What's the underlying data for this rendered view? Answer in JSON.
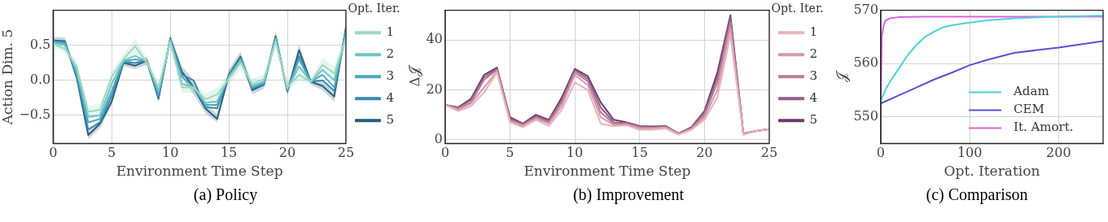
{
  "chart_data": [
    {
      "type": "line",
      "xlabel": "Environment Time Step",
      "ylabel": "Action Dim. 5",
      "legend_title": "Opt. Iter.",
      "legend": "right",
      "grid": true,
      "marker": "none",
      "x": [
        0,
        1,
        2,
        3,
        4,
        5,
        6,
        7,
        8,
        9,
        10,
        11,
        12,
        13,
        14,
        15,
        16,
        17,
        18,
        19,
        20,
        21,
        22,
        23,
        24,
        25
      ],
      "xlim": [
        0,
        25
      ],
      "xticks": [
        0,
        5,
        10,
        15,
        20,
        25
      ],
      "ylim": [
        -0.9,
        1.0
      ],
      "yticks": [
        {
          "value": -0.5,
          "label": "−0.5"
        },
        {
          "value": 0,
          "label": "0.0"
        },
        {
          "value": 0.5,
          "label": "0.5"
        }
      ],
      "series": [
        {
          "name": "1",
          "color": "#9fd8c0",
          "values": [
            0.52,
            0.45,
            0.2,
            -0.45,
            -0.42,
            0.05,
            0.3,
            0.49,
            0.25,
            -0.1,
            0.55,
            -0.1,
            -0.1,
            -0.27,
            -0.2,
            0.02,
            0.25,
            -0.05,
            0.02,
            0.55,
            -0.1,
            0.08,
            -0.02,
            0.22,
            0.1,
            0.6
          ],
          "lower": [
            0.47,
            0.4,
            0.12,
            -0.55,
            -0.5,
            -0.03,
            0.22,
            0.38,
            0.18,
            -0.18,
            0.48,
            -0.18,
            -0.18,
            -0.35,
            -0.3,
            -0.06,
            0.16,
            -0.12,
            -0.05,
            0.45,
            -0.16,
            0.0,
            -0.06,
            0.12,
            0.0,
            0.5
          ],
          "upper": [
            0.57,
            0.5,
            0.28,
            -0.36,
            -0.34,
            0.13,
            0.38,
            0.6,
            0.32,
            -0.02,
            0.62,
            -0.02,
            -0.02,
            -0.19,
            -0.1,
            0.1,
            0.34,
            0.02,
            0.09,
            0.65,
            -0.04,
            0.16,
            0.02,
            0.32,
            0.2,
            0.7
          ]
        },
        {
          "name": "2",
          "color": "#6cc4c4",
          "values": [
            0.54,
            0.5,
            0.15,
            -0.52,
            -0.5,
            -0.05,
            0.28,
            0.35,
            0.27,
            -0.15,
            0.57,
            -0.05,
            -0.1,
            -0.32,
            -0.3,
            0.04,
            0.28,
            -0.08,
            -0.02,
            0.58,
            -0.12,
            0.2,
            -0.02,
            0.15,
            0.0,
            0.65
          ]
        },
        {
          "name": "3",
          "color": "#4ba8c4",
          "values": [
            0.55,
            0.53,
            0.1,
            -0.6,
            -0.55,
            -0.15,
            0.27,
            0.3,
            0.28,
            -0.2,
            0.58,
            0.05,
            -0.1,
            -0.35,
            -0.35,
            0.06,
            0.3,
            -0.1,
            -0.04,
            0.6,
            -0.14,
            0.3,
            -0.02,
            0.08,
            -0.1,
            0.7
          ]
        },
        {
          "name": "4",
          "color": "#3a8bb0",
          "values": [
            0.56,
            0.55,
            0.07,
            -0.7,
            -0.6,
            -0.22,
            0.26,
            0.25,
            0.28,
            -0.24,
            0.59,
            0.08,
            0,
            -0.38,
            -0.4,
            0.07,
            0.32,
            -0.12,
            -0.05,
            0.62,
            -0.15,
            0.35,
            -0.02,
            0.0,
            -0.15,
            0.72
          ]
        },
        {
          "name": "5",
          "color": "#2b5f7a",
          "values": [
            0.57,
            0.56,
            0.05,
            -0.78,
            -0.62,
            -0.3,
            0.25,
            0.21,
            0.28,
            -0.26,
            0.6,
            0.12,
            -0.1,
            -0.4,
            -0.55,
            0.08,
            0.34,
            -0.14,
            -0.06,
            0.63,
            -0.16,
            0.43,
            -0.02,
            -0.08,
            -0.23,
            0.75
          ],
          "lower": [
            0.52,
            0.51,
            0.0,
            -0.84,
            -0.68,
            -0.36,
            0.2,
            0.16,
            0.22,
            -0.32,
            0.55,
            0.04,
            -0.2,
            -0.47,
            -0.6,
            0.0,
            0.27,
            -0.2,
            -0.12,
            0.55,
            -0.22,
            0.35,
            -0.06,
            -0.14,
            -0.3,
            0.65
          ],
          "upper": [
            0.62,
            0.61,
            0.1,
            -0.72,
            -0.56,
            -0.24,
            0.3,
            0.26,
            0.34,
            -0.2,
            0.65,
            0.2,
            0.0,
            -0.33,
            -0.48,
            0.16,
            0.41,
            -0.08,
            0.0,
            0.71,
            -0.1,
            0.51,
            0.02,
            -0.02,
            -0.16,
            0.85
          ]
        }
      ]
    },
    {
      "type": "line",
      "xlabel": "Environment Time Step",
      "ylabel": "Δ𝒥",
      "legend_title": "Opt. Iter.",
      "legend": "right",
      "grid": true,
      "marker": "none",
      "x": [
        0,
        1,
        2,
        3,
        4,
        5,
        6,
        7,
        8,
        9,
        10,
        11,
        12,
        13,
        14,
        15,
        16,
        17,
        18,
        19,
        20,
        21,
        22,
        23,
        24,
        25
      ],
      "xlim": [
        0,
        25
      ],
      "xticks": [
        0,
        5,
        10,
        15,
        20,
        25
      ],
      "ylim": [
        -1.5,
        52
      ],
      "yticks": [
        0,
        20,
        40
      ],
      "series": [
        {
          "name": "1",
          "color": "#e6b3bc",
          "values": [
            14,
            11.5,
            13.5,
            19,
            27,
            7,
            5,
            8,
            5.5,
            12,
            23,
            20,
            6.5,
            5.5,
            5.8,
            4,
            4,
            4.5,
            2,
            4,
            8,
            17,
            42,
            2,
            3.5,
            4.3
          ]
        },
        {
          "name": "2",
          "color": "#d49aa9",
          "values": [
            14,
            12,
            14.5,
            21,
            27.5,
            7.5,
            5.5,
            8.5,
            6.5,
            13.5,
            26,
            22,
            9,
            6,
            6,
            4.5,
            4.5,
            5,
            2.2,
            4.3,
            9,
            20,
            45,
            2.2,
            3.5,
            4.3
          ]
        },
        {
          "name": "3",
          "color": "#b97d98",
          "values": [
            14,
            12.5,
            15,
            24,
            28,
            8,
            6,
            9,
            7,
            15,
            27,
            23.5,
            11,
            6.5,
            6.5,
            5,
            4.8,
            5.2,
            2.3,
            4.6,
            10,
            23,
            47,
            2.3,
            3.5,
            4.3
          ]
        },
        {
          "name": "4",
          "color": "#935f86",
          "values": [
            14,
            12.8,
            16,
            25,
            28.5,
            8.5,
            6.2,
            9.5,
            7.5,
            16,
            28,
            24.5,
            13,
            7,
            6.8,
            5.3,
            5,
            5.3,
            2.4,
            4.8,
            11,
            25,
            49,
            2.4,
            3.5,
            4.3
          ]
        },
        {
          "name": "5",
          "color": "#6b3b6b",
          "values": [
            14,
            13,
            16.5,
            26,
            29,
            9,
            6.5,
            10,
            8,
            17,
            28.5,
            25.5,
            15,
            8,
            7,
            5.5,
            5.3,
            5.5,
            2.5,
            5,
            11.5,
            27,
            50,
            2.5,
            3.5,
            4.3
          ]
        }
      ]
    },
    {
      "type": "line",
      "xlabel": "Opt. Iteration",
      "ylabel": "𝒥",
      "legend": "bottom right",
      "grid": true,
      "marker": "none",
      "xlim": [
        0,
        250
      ],
      "xticks": [
        0,
        100,
        200
      ],
      "ylim": [
        545,
        570
      ],
      "yticks": [
        550,
        560,
        570
      ],
      "series": [
        {
          "name": "Adam",
          "color": "#4dd0d8",
          "x": [
            0,
            5,
            10,
            20,
            30,
            40,
            50,
            60,
            70,
            80,
            100,
            120,
            150,
            200,
            250
          ],
          "values": [
            553,
            555,
            556.5,
            559,
            561.5,
            563.5,
            565,
            566,
            566.8,
            567.2,
            567.7,
            568.1,
            568.5,
            568.8,
            569
          ]
        },
        {
          "name": "CEM",
          "color": "#5a4fd6",
          "x": [
            0,
            20,
            40,
            60,
            80,
            100,
            120,
            150,
            200,
            250
          ],
          "values": [
            552.5,
            554,
            555.5,
            557,
            558.3,
            559.7,
            560.7,
            562,
            563,
            564.2
          ]
        },
        {
          "name": "It. Amort.",
          "color": "#e35fe0",
          "x": [
            0,
            1,
            3,
            5,
            10,
            20,
            50,
            250
          ],
          "values": [
            553,
            565,
            567,
            568,
            568.5,
            568.7,
            568.8,
            568.8
          ]
        }
      ]
    },
    {
      "type": "other",
      "annotations": [
        "(a) Policy",
        "(b) Improvement",
        "(c) Comparison"
      ]
    }
  ]
}
